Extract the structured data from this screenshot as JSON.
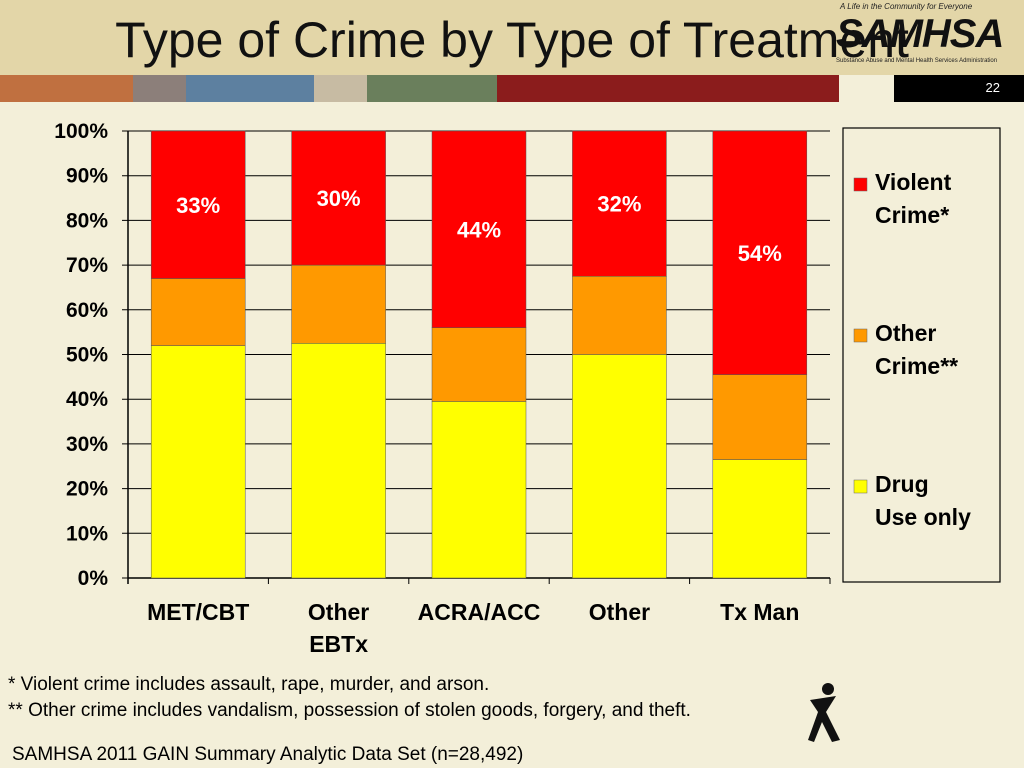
{
  "slide": {
    "title": "Type of Crime by Type of Treatment",
    "page_number": "22",
    "footnotes": [
      "* Violent crime includes assault, rape, murder, and arson.",
      "** Other crime includes vandalism, possession of stolen goods, forgery, and theft."
    ],
    "source": "SAMHSA 2011 GAIN Summary Analytic Data Set (n=28,492)",
    "logo": {
      "word": "SAMHSA",
      "tagline": "A Life in the Community for Everyone",
      "subline": "Substance Abuse and Mental Health Services Administration"
    },
    "colors": {
      "violent": "#ff0000",
      "other": "#ff9900",
      "drug": "#ffff00",
      "band": [
        "#c07040",
        "#8c7f7a",
        "#5d80a0",
        "#c7bba3",
        "#6a7f5c",
        "#8b1c1c",
        "#f3efd9",
        "#000000"
      ]
    }
  },
  "chart_data": {
    "type": "bar",
    "stacked": true,
    "stack_mode": "percent",
    "categories": [
      "MET/CBT",
      "Other EBTx",
      "ACRA/ACC",
      "Other",
      "Tx Man"
    ],
    "series": [
      {
        "name": "Drug Use only",
        "values": [
          52,
          52.5,
          39.5,
          50,
          26.5
        ],
        "color": "#ffff00"
      },
      {
        "name": "Other Crime**",
        "values": [
          15,
          17.5,
          16.5,
          17.5,
          19
        ],
        "color": "#ff9900"
      },
      {
        "name": "Violent Crime*",
        "values": [
          33,
          30,
          44,
          32.5,
          54.5
        ],
        "color": "#ff0000"
      }
    ],
    "data_labels": [
      "33%",
      "30%",
      "44%",
      "32%",
      "54%"
    ],
    "y_ticks": [
      "0%",
      "10%",
      "20%",
      "30%",
      "40%",
      "50%",
      "60%",
      "70%",
      "80%",
      "90%",
      "100%"
    ],
    "ylim": [
      0,
      100
    ],
    "grid": true,
    "legend": {
      "position": "right",
      "order": [
        "Violent Crime*",
        "Other Crime**",
        "Drug Use only"
      ]
    }
  }
}
